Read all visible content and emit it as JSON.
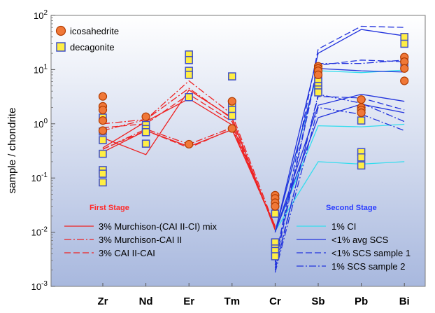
{
  "chart_data": {
    "type": "line",
    "yscale": "log",
    "ylim": [
      0.001,
      100
    ],
    "ylabel": "sample / chondrite",
    "categories": [
      "Zr",
      "Nd",
      "Er",
      "Tm",
      "Cr",
      "Sb",
      "Pb",
      "Bi"
    ],
    "y_tick_labels": [
      {
        "value": 100,
        "mantissa": "10",
        "exp": "2"
      },
      {
        "value": 10,
        "mantissa": "10",
        "exp": "1"
      },
      {
        "value": 1,
        "mantissa": "10",
        "exp": "0"
      },
      {
        "value": 0.1,
        "mantissa": "10",
        "exp": "-1"
      },
      {
        "value": 0.01,
        "mantissa": "10",
        "exp": "-2"
      },
      {
        "value": 0.001,
        "mantissa": "10",
        "exp": "-3"
      }
    ],
    "legend_symbols": [
      {
        "label": "icosahedrite",
        "marker": "circle",
        "color": "#f07838",
        "stroke": "#b23c00"
      },
      {
        "label": "decagonite",
        "marker": "square",
        "color": "#ffee44",
        "stroke": "#4050c8"
      }
    ],
    "stage_labels": {
      "first": "First Stage",
      "second": "Second Stage"
    },
    "legend_first": [
      {
        "label": "3% Murchison-(CAI II-CI) mix",
        "style": "solid",
        "color": "#ee2222"
      },
      {
        "label": "3% Murchison-CAI II",
        "style": "dashdot",
        "color": "#ee2222"
      },
      {
        "label": "3% CAI II-CAI",
        "style": "dashed",
        "color": "#ee2222"
      }
    ],
    "legend_second": [
      {
        "label": "1% CI",
        "style": "solid",
        "color": "#33ddee"
      },
      {
        "label": "<1% avg SCS",
        "style": "solid",
        "color": "#2233dd"
      },
      {
        "label": "<1% SCS sample 1",
        "style": "dashed",
        "color": "#2233dd"
      },
      {
        "label": "1% SCS sample 2",
        "style": "dashdot",
        "color": "#2233dd"
      }
    ],
    "icosahedrite": [
      {
        "x": "Zr",
        "values": [
          3.2,
          2.1,
          1.8,
          1.15,
          0.75
        ]
      },
      {
        "x": "Nd",
        "values": [
          1.35
        ]
      },
      {
        "x": "Er",
        "values": [
          0.42
        ]
      },
      {
        "x": "Tm",
        "values": [
          2.6,
          0.82
        ]
      },
      {
        "x": "Cr",
        "values": [
          0.048,
          0.042,
          0.035,
          0.03
        ]
      },
      {
        "x": "Sb",
        "values": [
          11.5,
          10.5,
          9.5,
          8.0
        ]
      },
      {
        "x": "Pb",
        "values": [
          2.8,
          2.0,
          1.8,
          1.6
        ]
      },
      {
        "x": "Bi",
        "values": [
          17.0,
          14.0,
          10.5,
          6.2
        ]
      }
    ],
    "decagonite": [
      {
        "x": "Zr",
        "values": [
          1.3,
          0.72,
          0.5,
          0.28,
          0.14,
          0.12,
          0.083
        ]
      },
      {
        "x": "Nd",
        "values": [
          0.95,
          0.8,
          0.7,
          0.43
        ]
      },
      {
        "x": "Er",
        "values": [
          19.0,
          15.0,
          9.5,
          8.0,
          3.1
        ]
      },
      {
        "x": "Tm",
        "values": [
          7.5,
          2.3,
          1.8,
          1.4
        ]
      },
      {
        "x": "Cr",
        "values": [
          0.022,
          0.0065,
          0.005,
          0.0045,
          0.0036
        ]
      },
      {
        "x": "Sb",
        "values": [
          10.5,
          7.5,
          6.0,
          5.0,
          4.3,
          3.8
        ]
      },
      {
        "x": "Pb",
        "values": [
          1.15,
          0.3,
          0.24,
          0.17
        ]
      },
      {
        "x": "Bi",
        "values": [
          40.0,
          30.0,
          14.5,
          12.5
        ]
      }
    ],
    "model_lines": [
      {
        "group": "first",
        "style": "solid",
        "values": [
          0.55,
          0.27,
          4.2,
          1.3,
          0.011
        ]
      },
      {
        "group": "first",
        "style": "solid",
        "values": [
          0.36,
          1.1,
          2.9,
          0.95,
          0.012
        ]
      },
      {
        "group": "first",
        "style": "solid",
        "values": [
          0.3,
          0.75,
          0.38,
          0.78,
          0.013
        ]
      },
      {
        "group": "first",
        "style": "dashdot",
        "values": [
          1.0,
          1.2,
          6.2,
          1.5,
          0.0125
        ]
      },
      {
        "group": "first",
        "style": "dashdot",
        "values": [
          0.75,
          1.2,
          4.5,
          1.25,
          0.011
        ]
      },
      {
        "group": "first",
        "style": "dashdot",
        "values": [
          0.34,
          0.8,
          0.42,
          0.85,
          0.012
        ]
      },
      {
        "group": "first",
        "style": "dashed",
        "values": [
          0.85,
          1.0,
          3.5,
          1.1,
          0.0115
        ]
      },
      {
        "group": "first",
        "style": "dashed",
        "values": [
          0.34,
          0.75,
          0.36,
          0.8,
          0.0125
        ]
      },
      {
        "group": "second",
        "style": "ci",
        "values": [
          0.0105,
          9.5,
          8.8,
          9.8
        ]
      },
      {
        "group": "second",
        "style": "ci",
        "values": [
          0.0105,
          0.92,
          0.88,
          0.98
        ]
      },
      {
        "group": "second",
        "style": "ci",
        "values": [
          0.0105,
          0.2,
          0.18,
          0.2
        ]
      },
      {
        "group": "second",
        "style": "solid",
        "values": [
          0.01,
          20.0,
          55.0,
          42.0
        ]
      },
      {
        "group": "second",
        "style": "solid",
        "values": [
          0.01,
          10.5,
          9.5,
          9.0
        ]
      },
      {
        "group": "second",
        "style": "solid",
        "values": [
          0.01,
          2.2,
          3.5,
          2.6
        ]
      },
      {
        "group": "second",
        "style": "solid",
        "values": [
          0.01,
          1.3,
          2.3,
          1.6
        ]
      },
      {
        "group": "second",
        "style": "dashed",
        "values": [
          0.003,
          24.0,
          63.0,
          60.0
        ]
      },
      {
        "group": "second",
        "style": "dashed",
        "values": [
          0.0025,
          12.0,
          15.0,
          14.0
        ]
      },
      {
        "group": "second",
        "style": "dashed",
        "values": [
          0.0022,
          3.2,
          3.0,
          1.8
        ]
      },
      {
        "group": "second",
        "style": "dashdot",
        "values": [
          0.0028,
          13.0,
          13.0,
          15.0
        ]
      },
      {
        "group": "second",
        "style": "dashdot",
        "values": [
          0.002,
          3.5,
          2.4,
          1.1
        ]
      },
      {
        "group": "second",
        "style": "dashdot",
        "values": [
          0.0018,
          2.0,
          1.5,
          0.75
        ]
      }
    ]
  }
}
